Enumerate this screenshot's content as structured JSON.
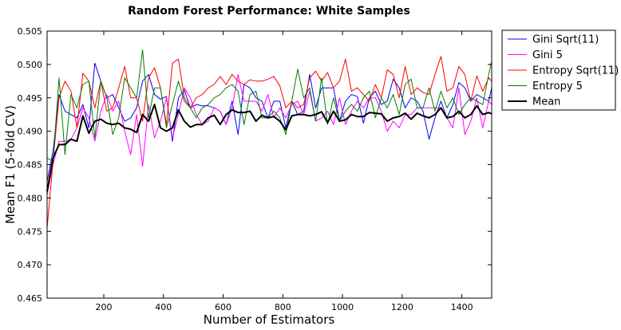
{
  "chart_data": {
    "type": "line",
    "title": "Random Forest Performance: White Samples",
    "xlabel": "Number of Estimators",
    "ylabel": "Mean F1 (5-fold CV)",
    "xlim": [
      10,
      1500
    ],
    "ylim": [
      0.465,
      0.505
    ],
    "xticks": [
      200,
      400,
      600,
      800,
      1000,
      1200,
      1400
    ],
    "yticks": [
      0.465,
      0.47,
      0.475,
      0.48,
      0.485,
      0.49,
      0.495,
      0.5,
      0.505
    ],
    "ytick_labels": [
      "0.465",
      "0.470",
      "0.475",
      "0.480",
      "0.485",
      "0.490",
      "0.495",
      "0.500",
      "0.505"
    ],
    "grid": false,
    "legend_position": "outside-top-right",
    "x": [
      10,
      30,
      50,
      70,
      90,
      110,
      130,
      150,
      170,
      190,
      210,
      230,
      250,
      270,
      290,
      310,
      330,
      350,
      370,
      390,
      410,
      430,
      450,
      470,
      490,
      510,
      530,
      550,
      570,
      590,
      610,
      630,
      650,
      670,
      690,
      710,
      730,
      750,
      770,
      790,
      810,
      830,
      850,
      870,
      890,
      910,
      930,
      950,
      970,
      990,
      1010,
      1030,
      1050,
      1070,
      1090,
      1110,
      1130,
      1150,
      1170,
      1190,
      1210,
      1230,
      1250,
      1270,
      1290,
      1310,
      1330,
      1350,
      1370,
      1390,
      1410,
      1430,
      1450,
      1470,
      1490,
      1500
    ],
    "series": [
      {
        "name": "Gini Sqrt(11)",
        "color": "#0000ff",
        "width": 1,
        "values": [
          0.4825,
          0.487,
          0.4955,
          0.493,
          0.4925,
          0.492,
          0.494,
          0.4905,
          0.5002,
          0.4975,
          0.495,
          0.4955,
          0.4935,
          0.4915,
          0.492,
          0.4935,
          0.4975,
          0.4985,
          0.4955,
          0.4948,
          0.4952,
          0.4885,
          0.495,
          0.4962,
          0.4935,
          0.494,
          0.4938,
          0.4938,
          0.4935,
          0.493,
          0.491,
          0.4945,
          0.4895,
          0.497,
          0.4965,
          0.495,
          0.4945,
          0.492,
          0.4945,
          0.4945,
          0.4905,
          0.4945,
          0.4925,
          0.493,
          0.4985,
          0.4935,
          0.4965,
          0.4965,
          0.4965,
          0.4915,
          0.4945,
          0.4955,
          0.4952,
          0.4912,
          0.495,
          0.496,
          0.494,
          0.4945,
          0.4978,
          0.4965,
          0.4935,
          0.495,
          0.4945,
          0.493,
          0.4888,
          0.492,
          0.4945,
          0.492,
          0.494,
          0.4973,
          0.4965,
          0.4945,
          0.4955,
          0.495,
          0.4945,
          0.4965
        ]
      },
      {
        "name": "Gini 5",
        "color": "#ff00ff",
        "width": 1,
        "values": [
          0.4805,
          0.485,
          0.4885,
          0.4885,
          0.4888,
          0.4905,
          0.4935,
          0.492,
          0.4885,
          0.493,
          0.4955,
          0.493,
          0.4945,
          0.49,
          0.4865,
          0.4925,
          0.4847,
          0.494,
          0.489,
          0.4915,
          0.495,
          0.489,
          0.4925,
          0.4965,
          0.495,
          0.4925,
          0.491,
          0.4915,
          0.4935,
          0.493,
          0.491,
          0.4935,
          0.4985,
          0.4945,
          0.4945,
          0.4945,
          0.493,
          0.4955,
          0.492,
          0.4935,
          0.492,
          0.494,
          0.4945,
          0.4925,
          0.496,
          0.4915,
          0.492,
          0.493,
          0.491,
          0.495,
          0.491,
          0.493,
          0.4945,
          0.4935,
          0.495,
          0.495,
          0.493,
          0.49,
          0.4915,
          0.4905,
          0.4925,
          0.4925,
          0.4935,
          0.4935,
          0.4935,
          0.4935,
          0.4935,
          0.492,
          0.4905,
          0.4965,
          0.4895,
          0.4915,
          0.495,
          0.4905,
          0.4945,
          0.494
        ]
      },
      {
        "name": "Entropy Sqrt(11)",
        "color": "#ff0000",
        "width": 1,
        "values": [
          0.4755,
          0.4855,
          0.495,
          0.4975,
          0.496,
          0.4905,
          0.4987,
          0.4975,
          0.4935,
          0.4975,
          0.493,
          0.4935,
          0.4965,
          0.4997,
          0.495,
          0.495,
          0.4915,
          0.498,
          0.4995,
          0.4965,
          0.491,
          0.5002,
          0.5008,
          0.495,
          0.4935,
          0.495,
          0.4955,
          0.4965,
          0.497,
          0.4982,
          0.497,
          0.4985,
          0.4975,
          0.497,
          0.4977,
          0.4975,
          0.4975,
          0.4978,
          0.4982,
          0.4968,
          0.4935,
          0.4945,
          0.4935,
          0.494,
          0.498,
          0.499,
          0.4975,
          0.4988,
          0.4965,
          0.4975,
          0.5008,
          0.496,
          0.4965,
          0.4955,
          0.4945,
          0.497,
          0.495,
          0.4992,
          0.4985,
          0.495,
          0.4997,
          0.4955,
          0.4965,
          0.4958,
          0.4955,
          0.4985,
          0.5012,
          0.496,
          0.4965,
          0.4997,
          0.4985,
          0.4945,
          0.4983,
          0.496,
          0.498,
          0.4975
        ]
      },
      {
        "name": "Entropy 5",
        "color": "#008000",
        "width": 1,
        "values": [
          0.486,
          0.4855,
          0.498,
          0.4865,
          0.4955,
          0.4935,
          0.497,
          0.4975,
          0.489,
          0.4975,
          0.495,
          0.4895,
          0.492,
          0.498,
          0.4965,
          0.495,
          0.5022,
          0.492,
          0.4965,
          0.4965,
          0.4905,
          0.494,
          0.4975,
          0.4945,
          0.4935,
          0.492,
          0.4935,
          0.494,
          0.495,
          0.4955,
          0.4965,
          0.497,
          0.496,
          0.491,
          0.4955,
          0.496,
          0.492,
          0.492,
          0.493,
          0.492,
          0.4895,
          0.4945,
          0.4993,
          0.495,
          0.4965,
          0.4915,
          0.498,
          0.491,
          0.495,
          0.4915,
          0.493,
          0.494,
          0.493,
          0.495,
          0.496,
          0.492,
          0.495,
          0.4935,
          0.4955,
          0.4925,
          0.497,
          0.4978,
          0.4935,
          0.4935,
          0.4965,
          0.493,
          0.496,
          0.4935,
          0.495,
          0.4925,
          0.494,
          0.495,
          0.4945,
          0.494,
          0.4985,
          0.5005
        ]
      },
      {
        "name": "Mean",
        "color": "#000000",
        "width": 2,
        "values": [
          0.481,
          0.486,
          0.488,
          0.488,
          0.4888,
          0.4885,
          0.4923,
          0.4897,
          0.4915,
          0.4918,
          0.4912,
          0.491,
          0.4912,
          0.4905,
          0.4903,
          0.4898,
          0.4925,
          0.4915,
          0.494,
          0.4905,
          0.49,
          0.4905,
          0.4932,
          0.4915,
          0.4906,
          0.491,
          0.491,
          0.492,
          0.4924,
          0.491,
          0.4925,
          0.4932,
          0.4928,
          0.4928,
          0.493,
          0.4915,
          0.4924,
          0.492,
          0.4922,
          0.4915,
          0.4902,
          0.4923,
          0.4925,
          0.4925,
          0.4923,
          0.4925,
          0.4929,
          0.4913,
          0.493,
          0.4915,
          0.4917,
          0.4925,
          0.4922,
          0.4922,
          0.4928,
          0.4927,
          0.4926,
          0.4915,
          0.492,
          0.4922,
          0.4927,
          0.4918,
          0.4927,
          0.4923,
          0.492,
          0.4925,
          0.4935,
          0.492,
          0.4922,
          0.493,
          0.492,
          0.4925,
          0.4938,
          0.4925,
          0.4928,
          0.4926
        ]
      }
    ]
  }
}
